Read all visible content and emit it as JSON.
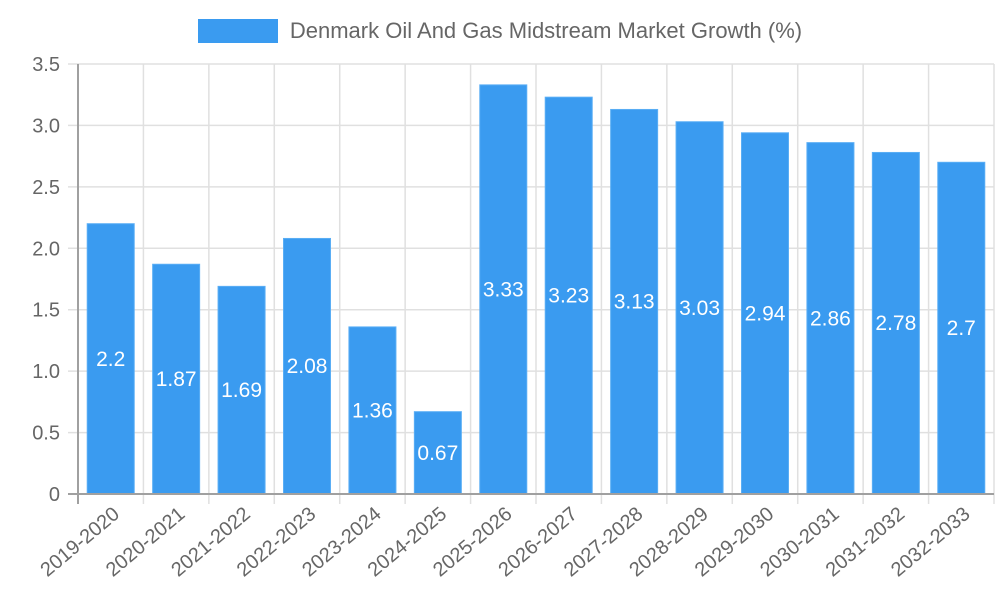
{
  "legend": {
    "label": "Denmark Oil And Gas Midstream Market Growth (%)",
    "color": "#3a9bf0"
  },
  "chart_data": {
    "type": "bar",
    "title": "",
    "xlabel": "",
    "ylabel": "",
    "ylim": [
      0,
      3.5
    ],
    "yticks": [
      "0",
      "0.5",
      "1.0",
      "1.5",
      "2.0",
      "2.5",
      "3.0",
      "3.5"
    ],
    "grid": true,
    "legend_position": "top",
    "categories": [
      "2019-2020",
      "2020-2021",
      "2021-2022",
      "2022-2023",
      "2023-2024",
      "2024-2025",
      "2025-2026",
      "2026-2027",
      "2027-2028",
      "2028-2029",
      "2029-2030",
      "2030-2031",
      "2031-2032",
      "2032-2033"
    ],
    "series": [
      {
        "name": "Denmark Oil And Gas Midstream Market Growth (%)",
        "values": [
          2.2,
          1.87,
          1.69,
          2.08,
          1.36,
          0.67,
          3.33,
          3.23,
          3.13,
          3.03,
          2.94,
          2.86,
          2.78,
          2.7
        ]
      }
    ],
    "colors": {
      "bar": "#3a9bf0",
      "grid": "#e0e0e0",
      "axis": "#a0a0a0",
      "text": "#666666",
      "label": "#ffffff"
    }
  }
}
